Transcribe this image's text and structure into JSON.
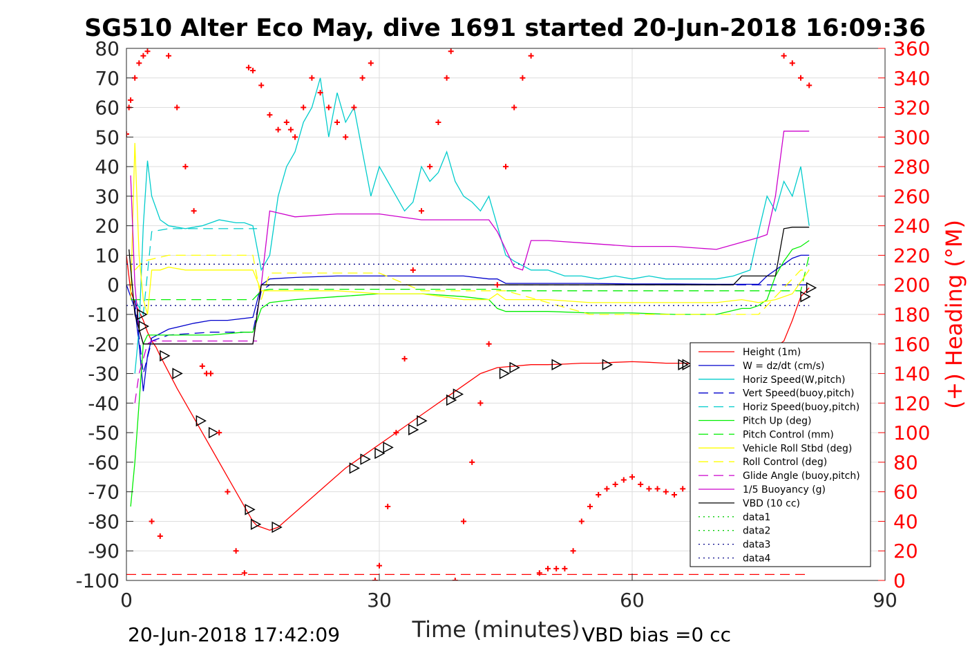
{
  "chart_data": {
    "type": "line",
    "title": "SG510 Alter Eco May, dive 1691 started 20-Jun-2018 16:09:36",
    "xlabel": "Time (minutes)",
    "ylabel": "",
    "ylabel_right": "(+) Heading (°M)",
    "xlim": [
      0,
      90
    ],
    "ylim": [
      -100,
      80
    ],
    "ylim_right": [
      0,
      360
    ],
    "x_ticks": [
      "0",
      "30",
      "60",
      "90"
    ],
    "y_ticks": [
      "80",
      "70",
      "60",
      "50",
      "40",
      "30",
      "20",
      "10",
      "0",
      "-10",
      "-20",
      "-30",
      "-40",
      "-50",
      "-60",
      "-70",
      "-80",
      "-90",
      "-100"
    ],
    "y_ticks_right": [
      "360",
      "340",
      "320",
      "300",
      "280",
      "260",
      "240",
      "220",
      "200",
      "180",
      "160",
      "140",
      "120",
      "100",
      "80",
      "60",
      "40",
      "20",
      "0"
    ],
    "grid": true,
    "legend_placement": "bottom-right",
    "footer_left": "20-Jun-2018 17:42:09",
    "footer_right": "VBD bias =0 cc",
    "series": [
      {
        "name": "Height (1m)",
        "color": "#ff0000",
        "style": "solid",
        "x": [
          0,
          0.5,
          1,
          1.5,
          2,
          2.5,
          3,
          3.5,
          4,
          6,
          8,
          10,
          12,
          14,
          15,
          15.5,
          16,
          16.5,
          17,
          18,
          20,
          22,
          24,
          26,
          28,
          30,
          32,
          34,
          36,
          38,
          40,
          42,
          44,
          46,
          48,
          50,
          52,
          54,
          56,
          58,
          60,
          62,
          64,
          66,
          68,
          70,
          72,
          74,
          76,
          77,
          78,
          79,
          80,
          81
        ],
        "values": [
          10,
          -2,
          -6,
          -9,
          -12,
          -16,
          -19,
          -21,
          -24,
          -35,
          -45,
          -55,
          -65,
          -75,
          -80,
          -81.5,
          -82,
          -82.5,
          -83,
          -82,
          -77,
          -72,
          -67,
          -62,
          -58,
          -54,
          -50,
          -46,
          -42,
          -38,
          -34,
          -30,
          -28,
          -27.5,
          -27,
          -27,
          -26.8,
          -26.5,
          -26.5,
          -26.2,
          -26,
          -26.2,
          -26.5,
          -26.5,
          -26.8,
          -27,
          -27.2,
          -27.5,
          -23,
          -21,
          -19,
          -12,
          -4,
          -1
        ]
      },
      {
        "name": "W = dz/dt (cm/s)",
        "color": "#0000cc",
        "style": "solid",
        "x": [
          0,
          1,
          1.5,
          2,
          2.5,
          3,
          5,
          8,
          10,
          12,
          15,
          16,
          17,
          20,
          25,
          30,
          35,
          40,
          43,
          44,
          45,
          50,
          55,
          60,
          65,
          70,
          75,
          76,
          77,
          78,
          79,
          80,
          81
        ],
        "values": [
          0,
          -8,
          -20,
          -36,
          -24,
          -18,
          -15,
          -13,
          -12,
          -12,
          -11,
          0,
          2,
          2.5,
          3,
          3,
          3,
          3,
          2,
          2,
          0.5,
          0.5,
          0.5,
          0.3,
          0.3,
          0.2,
          0.2,
          3,
          5,
          7,
          9,
          10,
          10
        ]
      },
      {
        "name": "Horiz Speed(W,pitch)",
        "color": "#00cccc",
        "style": "solid",
        "x": [
          1,
          1.5,
          2,
          2.5,
          3,
          4,
          5,
          7,
          9,
          11,
          13,
          14,
          15,
          16,
          17,
          18,
          19,
          20,
          21,
          22,
          23,
          24,
          25,
          26,
          27,
          28,
          29,
          30,
          31,
          32,
          33,
          34,
          35,
          36,
          37,
          38,
          39,
          40,
          41,
          42,
          43,
          44,
          45,
          46,
          48,
          50,
          52,
          54,
          56,
          58,
          60,
          62,
          64,
          66,
          68,
          70,
          72,
          74,
          75,
          76,
          77,
          78,
          79,
          80,
          81
        ],
        "values": [
          -30,
          -15,
          20,
          42,
          30,
          22,
          20,
          19,
          20,
          22,
          21,
          21,
          20,
          5,
          10,
          30,
          40,
          45,
          55,
          60,
          70,
          50,
          65,
          55,
          60,
          45,
          30,
          40,
          35,
          30,
          25,
          28,
          40,
          35,
          38,
          45,
          35,
          30,
          28,
          25,
          30,
          20,
          10,
          8,
          5,
          5,
          3,
          3,
          2,
          3,
          2,
          3,
          2,
          2,
          2,
          2,
          3,
          5,
          18,
          30,
          25,
          35,
          30,
          40,
          20
        ]
      },
      {
        "name": "Vert Speed(buoy,pitch)",
        "color": "#0000cc",
        "style": "dashed",
        "x": [
          1,
          2,
          3,
          5,
          10,
          15,
          16,
          17,
          45,
          81
        ],
        "values": [
          -5,
          -30,
          -19,
          -17,
          -16,
          -16,
          -2,
          0,
          0,
          0
        ]
      },
      {
        "name": "Horiz Speed(buoy,pitch)",
        "color": "#00cccc",
        "style": "dashed",
        "x": [
          1,
          2,
          3,
          5,
          10,
          15,
          15.5
        ],
        "values": [
          -5,
          -10,
          18,
          19,
          19,
          19,
          19
        ]
      },
      {
        "name": "Pitch Up (deg)",
        "color": "#00ee00",
        "style": "solid",
        "x": [
          0.5,
          1,
          1.5,
          2,
          2.5,
          3,
          5,
          10,
          14,
          15,
          16,
          17,
          20,
          25,
          30,
          35,
          40,
          43,
          44,
          45,
          50,
          55,
          60,
          65,
          70,
          73,
          74,
          75,
          76,
          77,
          78,
          79,
          80,
          81
        ],
        "values": [
          -75,
          -60,
          -40,
          -20,
          -17,
          -17,
          -17,
          -17,
          -16,
          -16,
          -8,
          -6,
          -5,
          -4,
          -3,
          -3,
          -4,
          -5,
          -8,
          -9,
          -9,
          -9.5,
          -9.5,
          -10,
          -10,
          -8,
          -8,
          -7,
          -5,
          3,
          8,
          12,
          13,
          15
        ]
      },
      {
        "name": "Pitch Control (mm)",
        "color": "#00ee00",
        "style": "dashed",
        "x": [
          0.5,
          1,
          2,
          15,
          16,
          17,
          44,
          45,
          80,
          81
        ],
        "values": [
          -5,
          -5,
          -5,
          -5,
          -2,
          -1.5,
          -1.5,
          -2,
          -2,
          10
        ]
      },
      {
        "name": "Vehicle Roll Stbd (deg)",
        "color": "#ffff00",
        "style": "solid",
        "x": [
          0.5,
          1,
          1.5,
          2,
          2.5,
          3,
          4,
          5,
          7,
          9,
          11,
          13,
          15,
          16,
          17,
          20,
          25,
          30,
          35,
          40,
          43,
          44,
          45,
          50,
          55,
          60,
          65,
          70,
          73,
          75,
          77,
          79,
          81
        ],
        "values": [
          -5,
          48,
          10,
          -5,
          -10,
          5,
          5,
          6,
          5,
          5,
          5,
          5,
          5,
          -2,
          -2,
          -2,
          -2,
          -3,
          -3,
          -5,
          -5,
          -3,
          -5,
          -5,
          -6,
          -6,
          -6,
          -6,
          -5,
          -6,
          -5,
          -3,
          5
        ]
      },
      {
        "name": "Roll Control (deg)",
        "color": "#ffff00",
        "style": "dashed",
        "x": [
          1,
          2,
          5,
          10,
          15,
          16,
          17,
          20,
          30,
          35,
          40,
          45,
          55,
          60,
          70,
          75,
          80,
          81
        ],
        "values": [
          5,
          8,
          10,
          10,
          10,
          -5,
          4,
          4,
          4,
          -2,
          -2,
          -2,
          -10,
          -10,
          -10,
          -10,
          5,
          5
        ]
      },
      {
        "name": "Glide Angle (buoy,pitch)",
        "color": "#cc00cc",
        "style": "dashed",
        "x": [
          1,
          1.5,
          2,
          2.5,
          3,
          5,
          10,
          15,
          15.5
        ],
        "values": [
          -40,
          -30,
          -25,
          -20,
          -19,
          -19,
          -19,
          -19,
          -19
        ]
      },
      {
        "name": "1/5 Buoyancy (g)",
        "color": "#cc00cc",
        "style": "solid",
        "x": [
          0.5,
          1,
          1.5,
          2,
          2.5,
          3,
          5,
          10,
          15,
          16,
          17,
          20,
          25,
          30,
          35,
          40,
          43,
          44,
          45,
          46,
          47,
          48,
          50,
          55,
          60,
          65,
          70,
          75,
          76,
          77,
          78,
          79,
          80,
          81
        ],
        "values": [
          37,
          0,
          -15,
          -20,
          -20,
          -20,
          -20,
          -20,
          -20,
          0,
          25,
          23,
          24,
          24,
          22,
          22,
          22,
          18,
          12,
          6,
          5,
          15,
          15,
          14,
          13,
          13,
          12,
          16,
          17,
          30,
          52,
          52,
          52,
          52
        ]
      },
      {
        "name": "VBD (10 cc)",
        "color": "#000000",
        "style": "solid",
        "x": [
          0.3,
          1,
          2,
          3,
          5,
          10,
          14,
          15,
          16,
          17,
          20,
          30,
          40,
          50,
          60,
          70,
          72,
          73,
          75,
          77,
          78,
          79,
          80,
          81
        ],
        "values": [
          12,
          -10,
          -20,
          -20,
          -20,
          -20,
          -20,
          -20,
          0,
          0,
          0,
          0,
          0,
          0,
          0,
          0,
          0,
          3,
          3,
          3,
          19,
          19.5,
          19.5,
          19.5
        ]
      },
      {
        "name": "data1",
        "color": "#00cc00",
        "style": "dotted",
        "x": [],
        "values": []
      },
      {
        "name": "data2",
        "color": "#00cc00",
        "style": "dotted",
        "x": [],
        "values": []
      },
      {
        "name": "data3",
        "color": "#000088",
        "style": "dotted",
        "x": [
          0,
          81
        ],
        "values": [
          7,
          7
        ]
      },
      {
        "name": "data4",
        "color": "#000088",
        "style": "dotted",
        "x": [
          0,
          81
        ],
        "values": [
          -7,
          -7
        ]
      }
    ],
    "ref_lines": [
      {
        "color": "#ff0000",
        "style": "dashed",
        "x": [
          0,
          81
        ],
        "values": [
          -98,
          -98
        ]
      }
    ],
    "heading": {
      "color": "#ff0000",
      "marker": "+",
      "x": [
        0,
        0.3,
        0.5,
        1,
        1.5,
        2,
        2.5,
        3,
        4,
        5,
        6,
        7,
        8,
        9,
        9.5,
        10,
        11,
        12,
        13,
        14,
        14.5,
        15,
        16,
        17,
        18,
        19,
        19.5,
        20,
        21,
        22,
        23,
        24,
        25,
        26,
        27,
        28,
        29,
        29.5,
        30,
        31,
        32,
        33,
        34,
        35,
        36,
        37,
        38,
        38.5,
        39,
        40,
        41,
        42,
        43,
        44,
        45,
        46,
        47,
        48,
        49,
        50,
        51,
        52,
        53,
        54,
        55,
        56,
        57,
        58,
        59,
        60,
        61,
        62,
        63,
        64,
        65,
        66,
        78,
        79,
        80,
        81
      ],
      "values": [
        302,
        320,
        325,
        340,
        350,
        355,
        358,
        40,
        30,
        355,
        320,
        280,
        250,
        145,
        140,
        140,
        100,
        60,
        20,
        5,
        347,
        345,
        335,
        315,
        305,
        310,
        305,
        300,
        320,
        340,
        330,
        320,
        310,
        300,
        320,
        340,
        350,
        0,
        10,
        50,
        100,
        150,
        210,
        250,
        280,
        310,
        340,
        358,
        0,
        40,
        80,
        120,
        160,
        200,
        280,
        320,
        340,
        355,
        5,
        8,
        8,
        8,
        20,
        40,
        50,
        58,
        62,
        65,
        68,
        70,
        65,
        62,
        62,
        60,
        58,
        62,
        355,
        350,
        340,
        335
      ]
    },
    "markers": {
      "style": "triangle",
      "x": [
        1.8,
        2.0,
        4.5,
        6.0,
        8.8,
        10.3,
        14.6,
        15.3,
        17.8,
        27.0,
        28.3,
        30.0,
        31.0,
        34.0,
        35.0,
        38.5,
        39.3,
        44.8,
        46.0,
        51.0,
        57.0,
        66.0,
        66.5,
        80.5,
        81.2
      ],
      "values": [
        -10,
        -14,
        -24,
        -30,
        -46,
        -50,
        -76,
        -81,
        -82,
        -62,
        -59,
        -57,
        -55,
        -49,
        -46,
        -39,
        -37,
        -30,
        -28,
        -27,
        -27,
        -27,
        -27,
        -4,
        -1
      ]
    }
  }
}
